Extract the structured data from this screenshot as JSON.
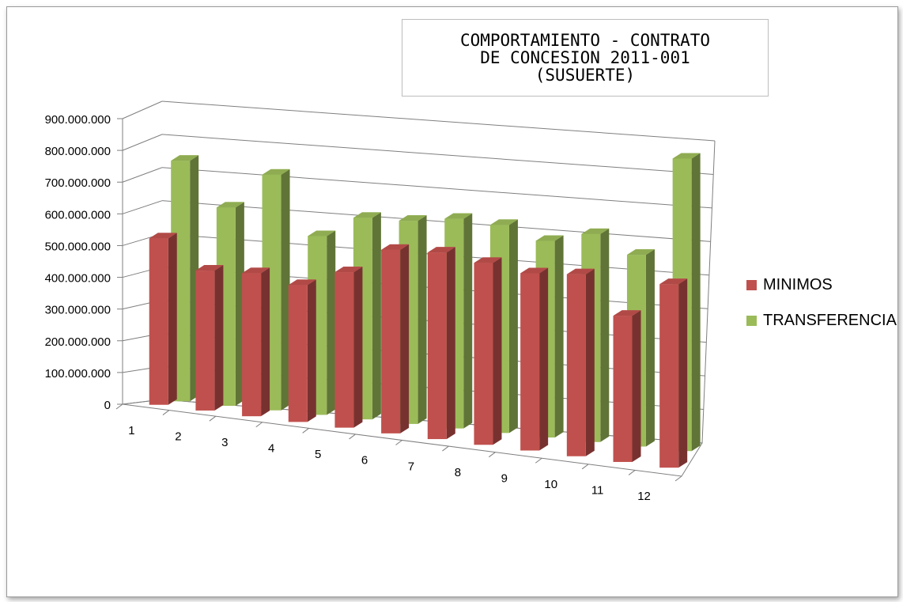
{
  "chart_data": {
    "type": "bar",
    "title": "COMPORTAMIENTO - CONTRATO\nDE CONCESION 2011-001\n(SUSUERTE)",
    "categories": [
      "1",
      "2",
      "3",
      "4",
      "5",
      "6",
      "7",
      "8",
      "9",
      "10",
      "11",
      "12"
    ],
    "series": [
      {
        "name": "MINIMOS",
        "color": "#c0504d",
        "values": [
          535000000,
          450000000,
          460000000,
          440000000,
          500000000,
          590000000,
          600000000,
          585000000,
          570000000,
          585000000,
          470000000,
          590000000
        ]
      },
      {
        "name": "TRANSFERENCIA",
        "color": "#9bbb59",
        "values": [
          740000000,
          610000000,
          725000000,
          550000000,
          620000000,
          625000000,
          645000000,
          640000000,
          605000000,
          640000000,
          590000000,
          900000000
        ]
      }
    ],
    "yticks": [
      "0",
      "100.000.000",
      "200.000.000",
      "300.000.000",
      "400.000.000",
      "500.000.000",
      "600.000.000",
      "700.000.000",
      "800.000.000",
      "900.000.000"
    ],
    "ylim": [
      0,
      900000000
    ],
    "grid": true,
    "legend": "right",
    "style": "3d-clustered-column"
  }
}
